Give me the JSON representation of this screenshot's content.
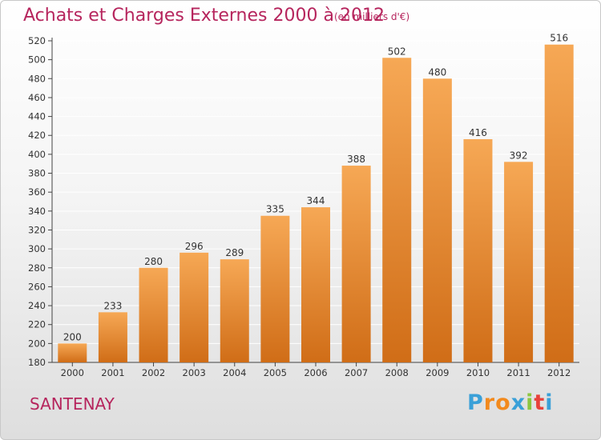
{
  "header": {
    "title": "Achats et Charges Externes 2000 à 2012",
    "subtitle": "(en milliers d'€)"
  },
  "footer": {
    "commune": "SANTENAY",
    "logo": {
      "letters": [
        "P",
        "r",
        "o",
        "x",
        "i",
        "t",
        "i"
      ],
      "colors": [
        "#3aa0d8",
        "#f28a1e",
        "#f28a1e",
        "#3aa0d8",
        "#8cc63f",
        "#e8413a",
        "#3aa0d8"
      ]
    }
  },
  "colors": {
    "bar_top": "#f6a855",
    "bar_bottom": "#d06d17",
    "title": "#b6255d",
    "grid": "#ffffff"
  },
  "chart_data": {
    "type": "bar",
    "title": "Achats et Charges Externes 2000 à 2012",
    "subtitle": "(en milliers d'€)",
    "xlabel": "",
    "ylabel": "",
    "categories": [
      "2000",
      "2001",
      "2002",
      "2003",
      "2004",
      "2005",
      "2006",
      "2007",
      "2008",
      "2009",
      "2010",
      "2011",
      "2012"
    ],
    "values": [
      200,
      233,
      280,
      296,
      289,
      335,
      344,
      388,
      502,
      480,
      416,
      392,
      516
    ],
    "ylim": [
      180,
      520
    ],
    "yticks": [
      180,
      200,
      220,
      240,
      260,
      280,
      300,
      320,
      340,
      360,
      380,
      400,
      420,
      440,
      460,
      480,
      500,
      520
    ],
    "grid": true,
    "data_labels": true
  }
}
